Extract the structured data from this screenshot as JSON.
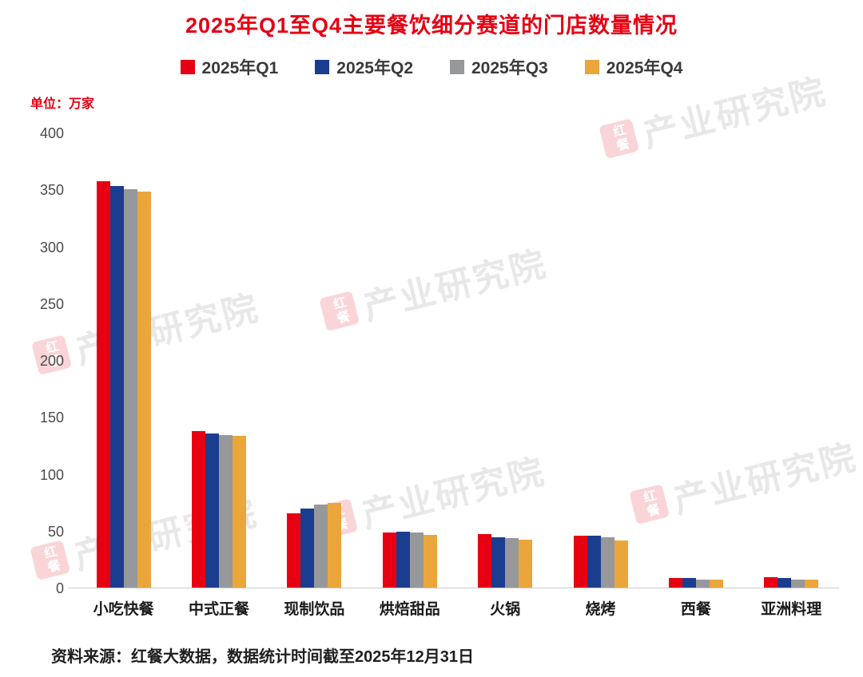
{
  "title": "2025年Q1至Q4主要餐饮细分赛道的门店数量情况",
  "unit_label": "单位：万家",
  "source": "资料来源：红餐大数据，数据统计时间截至2025年12月31日",
  "watermark": {
    "logo_text": "红餐",
    "text": "产业研究院"
  },
  "colors": {
    "title": "#e60012",
    "q1_red": "#e60012",
    "q2_blue": "#1b3d8f",
    "q3_gray": "#97989a",
    "q4_gold": "#eaa63b"
  },
  "chart_data": {
    "type": "bar",
    "title": "2025年Q1至Q4主要餐饮细分赛道的门店数量情况",
    "ylabel": "单位：万家",
    "categories": [
      "小吃快餐",
      "中式正餐",
      "现制饮品",
      "烘焙甜品",
      "火锅",
      "烧烤",
      "西餐",
      "亚洲料理"
    ],
    "series": [
      {
        "name": "2025年Q1",
        "color": "#e60012",
        "values": [
          358,
          138,
          66,
          49,
          48,
          46,
          9,
          10
        ]
      },
      {
        "name": "2025年Q2",
        "color": "#1b3d8f",
        "values": [
          354,
          136,
          70,
          50,
          45,
          46,
          9,
          9
        ]
      },
      {
        "name": "2025年Q3",
        "color": "#97989a",
        "values": [
          351,
          135,
          74,
          49,
          44,
          45,
          8,
          8
        ]
      },
      {
        "name": "2025年Q4",
        "color": "#eaa63b",
        "values": [
          349,
          134,
          75,
          47,
          43,
          42,
          8,
          8
        ]
      }
    ],
    "ylim": [
      0,
      400
    ],
    "yticks": [
      0,
      50,
      100,
      150,
      200,
      250,
      300,
      350,
      400
    ],
    "grid": false,
    "legend_position": "top"
  }
}
